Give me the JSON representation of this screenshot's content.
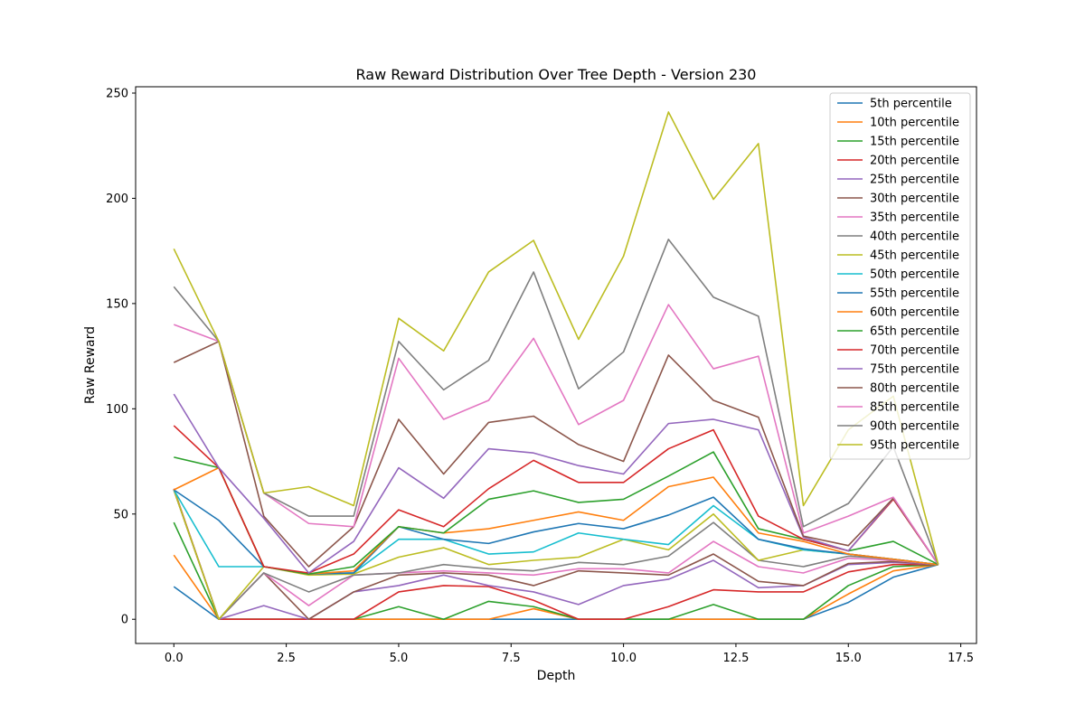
{
  "chart_data": {
    "type": "line",
    "title": "Raw Reward Distribution Over Tree Depth - Version 230",
    "xlabel": "Depth",
    "ylabel": "Raw Reward",
    "xlim": [
      -0.85,
      17.85
    ],
    "ylim": [
      -11.5,
      253
    ],
    "xticks": [
      0.0,
      2.5,
      5.0,
      7.5,
      10.0,
      12.5,
      15.0,
      17.5
    ],
    "xtick_labels": [
      "0.0",
      "2.5",
      "5.0",
      "7.5",
      "10.0",
      "12.5",
      "15.0",
      "17.5"
    ],
    "yticks": [
      0,
      50,
      100,
      150,
      200,
      250
    ],
    "ytick_labels": [
      "0",
      "50",
      "100",
      "150",
      "200",
      "250"
    ],
    "grid": false,
    "legend_position": "top-right",
    "x": [
      0,
      1,
      2,
      3,
      4,
      5,
      6,
      7,
      8,
      9,
      10,
      11,
      12,
      13,
      14,
      15,
      16,
      17
    ],
    "series": [
      {
        "name": "5th percentile",
        "color": "#1f77b4",
        "values": [
          15.5,
          0,
          0,
          0,
          0,
          0,
          0,
          0,
          0,
          0,
          0,
          0,
          0,
          0,
          0,
          8,
          20,
          26
        ]
      },
      {
        "name": "10th percentile",
        "color": "#ff7f0e",
        "values": [
          30.5,
          0,
          0,
          0,
          0,
          0,
          0,
          0,
          5,
          0,
          0,
          0,
          0,
          0,
          0,
          12,
          23,
          26
        ]
      },
      {
        "name": "15th percentile",
        "color": "#2ca02c",
        "values": [
          46,
          0,
          0,
          0,
          0,
          6,
          0,
          8.5,
          6,
          0,
          0,
          0,
          7,
          0,
          0,
          16,
          25,
          26
        ]
      },
      {
        "name": "20th percentile",
        "color": "#d62728",
        "values": [
          62,
          0,
          0,
          0,
          0,
          13,
          16,
          15.5,
          9,
          0,
          0,
          6,
          14,
          13,
          13,
          22.5,
          26,
          26
        ]
      },
      {
        "name": "25th percentile",
        "color": "#9467bd",
        "values": [
          61.5,
          0,
          6.5,
          0,
          13,
          16,
          21,
          16,
          13,
          7,
          16,
          19,
          28,
          15,
          16,
          26,
          27,
          26
        ]
      },
      {
        "name": "30th percentile",
        "color": "#8c564b",
        "values": [
          61.5,
          0,
          22,
          0,
          13,
          21,
          22,
          21,
          16,
          23,
          22,
          21,
          31,
          18,
          16,
          26.5,
          27.5,
          26
        ]
      },
      {
        "name": "35th percentile",
        "color": "#e377c2",
        "values": [
          61.5,
          0,
          22,
          6.5,
          21,
          22,
          23,
          22,
          21,
          24,
          24,
          22,
          37,
          25,
          22,
          29,
          28,
          26
        ]
      },
      {
        "name": "40th percentile",
        "color": "#7f7f7f",
        "values": [
          61.5,
          0,
          22,
          13,
          21,
          22,
          26,
          24,
          23,
          27,
          26,
          30,
          46,
          28,
          25,
          30,
          28.5,
          26
        ]
      },
      {
        "name": "45th percentile",
        "color": "#bcbd22",
        "values": [
          61.5,
          0,
          25,
          21,
          21.5,
          29.5,
          34,
          26,
          28,
          29.5,
          38,
          33,
          50,
          28,
          33,
          31,
          28.5,
          26
        ]
      },
      {
        "name": "50th percentile",
        "color": "#17becf",
        "values": [
          61.5,
          25,
          25,
          21.5,
          22,
          38,
          38,
          31,
          32,
          41,
          38,
          35.5,
          54,
          38,
          33,
          31,
          28.5,
          26
        ]
      },
      {
        "name": "55th percentile",
        "color": "#1f77b4",
        "values": [
          61.5,
          47,
          25,
          21.5,
          22,
          44,
          38,
          36,
          41.5,
          45.5,
          43,
          49.5,
          58,
          38,
          33.5,
          31,
          28.5,
          26
        ]
      },
      {
        "name": "60th percentile",
        "color": "#ff7f0e",
        "values": [
          61.5,
          72,
          25,
          21.5,
          23,
          44,
          41,
          43,
          47,
          51,
          47,
          63,
          67.5,
          41,
          37,
          31,
          28.5,
          26
        ]
      },
      {
        "name": "65th percentile",
        "color": "#2ca02c",
        "values": [
          77,
          72,
          25,
          21.5,
          25,
          44,
          41,
          57,
          61,
          55.5,
          57,
          68,
          79.5,
          43,
          38,
          32.5,
          37,
          26
        ]
      },
      {
        "name": "70th percentile",
        "color": "#d62728",
        "values": [
          92,
          72,
          25,
          22,
          31,
          52,
          44,
          62,
          75.5,
          65,
          65,
          81,
          90,
          49,
          38,
          32.5,
          57,
          26
        ]
      },
      {
        "name": "75th percentile",
        "color": "#9467bd",
        "values": [
          107,
          72,
          48,
          22,
          37,
          72,
          57.5,
          81,
          79,
          73,
          69,
          93,
          95,
          90,
          39,
          32.5,
          57.5,
          26
        ]
      },
      {
        "name": "80th percentile",
        "color": "#8c564b",
        "values": [
          122,
          132,
          49,
          25,
          44,
          95,
          69,
          93.5,
          96.5,
          83,
          75,
          125.5,
          104,
          96,
          39.5,
          35,
          57.5,
          26
        ]
      },
      {
        "name": "85th percentile",
        "color": "#e377c2",
        "values": [
          140,
          132,
          60,
          45.5,
          44,
          124,
          95,
          104,
          133.5,
          92.5,
          104,
          149.5,
          119,
          125,
          41,
          49,
          58,
          26
        ]
      },
      {
        "name": "90th percentile",
        "color": "#7f7f7f",
        "values": [
          158,
          132,
          60,
          49,
          49,
          132,
          109,
          123,
          165,
          109.5,
          127,
          180.5,
          153,
          144,
          44,
          55,
          82,
          26
        ]
      },
      {
        "name": "95th percentile",
        "color": "#bcbd22",
        "values": [
          176,
          132,
          60,
          63,
          54,
          143,
          127.5,
          165,
          180,
          133,
          172.5,
          241,
          199.5,
          226,
          54,
          90,
          106,
          26
        ]
      }
    ]
  }
}
